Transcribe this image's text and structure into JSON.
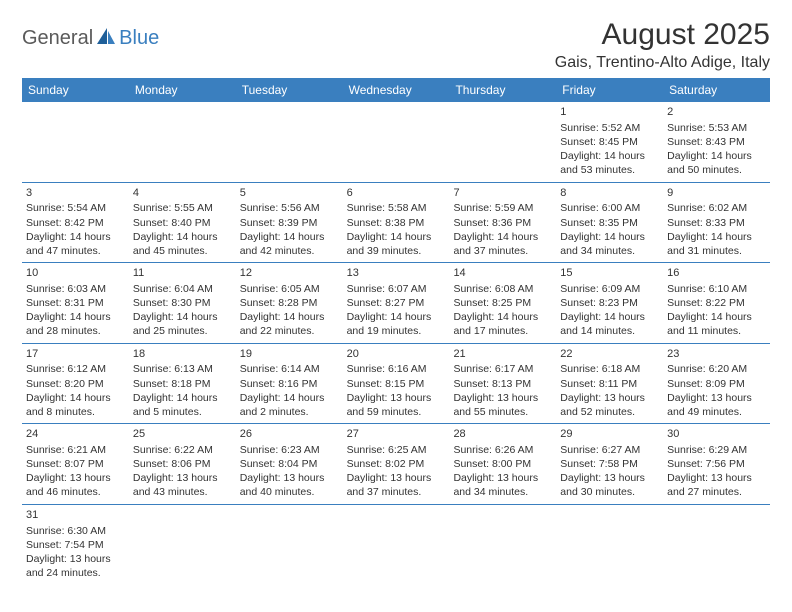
{
  "logo": {
    "left": "General",
    "right": "Blue"
  },
  "title": "August 2025",
  "location": "Gais, Trentino-Alto Adige, Italy",
  "colors": {
    "header_bg": "#3a7fbf",
    "header_text": "#ffffff",
    "row_divider": "#3a7fbf",
    "body_text": "#333333",
    "logo_left": "#5a5a5a",
    "logo_right": "#3a7fbf",
    "background": "#ffffff"
  },
  "typography": {
    "title_fontsize": 30,
    "location_fontsize": 16,
    "day_header_fontsize": 12,
    "cell_fontsize": 10.5,
    "logo_fontsize": 20
  },
  "day_headers": [
    "Sunday",
    "Monday",
    "Tuesday",
    "Wednesday",
    "Thursday",
    "Friday",
    "Saturday"
  ],
  "weeks": [
    [
      null,
      null,
      null,
      null,
      null,
      {
        "day": "1",
        "sunrise": "Sunrise: 5:52 AM",
        "sunset": "Sunset: 8:45 PM",
        "dl1": "Daylight: 14 hours",
        "dl2": "and 53 minutes."
      },
      {
        "day": "2",
        "sunrise": "Sunrise: 5:53 AM",
        "sunset": "Sunset: 8:43 PM",
        "dl1": "Daylight: 14 hours",
        "dl2": "and 50 minutes."
      }
    ],
    [
      {
        "day": "3",
        "sunrise": "Sunrise: 5:54 AM",
        "sunset": "Sunset: 8:42 PM",
        "dl1": "Daylight: 14 hours",
        "dl2": "and 47 minutes."
      },
      {
        "day": "4",
        "sunrise": "Sunrise: 5:55 AM",
        "sunset": "Sunset: 8:40 PM",
        "dl1": "Daylight: 14 hours",
        "dl2": "and 45 minutes."
      },
      {
        "day": "5",
        "sunrise": "Sunrise: 5:56 AM",
        "sunset": "Sunset: 8:39 PM",
        "dl1": "Daylight: 14 hours",
        "dl2": "and 42 minutes."
      },
      {
        "day": "6",
        "sunrise": "Sunrise: 5:58 AM",
        "sunset": "Sunset: 8:38 PM",
        "dl1": "Daylight: 14 hours",
        "dl2": "and 39 minutes."
      },
      {
        "day": "7",
        "sunrise": "Sunrise: 5:59 AM",
        "sunset": "Sunset: 8:36 PM",
        "dl1": "Daylight: 14 hours",
        "dl2": "and 37 minutes."
      },
      {
        "day": "8",
        "sunrise": "Sunrise: 6:00 AM",
        "sunset": "Sunset: 8:35 PM",
        "dl1": "Daylight: 14 hours",
        "dl2": "and 34 minutes."
      },
      {
        "day": "9",
        "sunrise": "Sunrise: 6:02 AM",
        "sunset": "Sunset: 8:33 PM",
        "dl1": "Daylight: 14 hours",
        "dl2": "and 31 minutes."
      }
    ],
    [
      {
        "day": "10",
        "sunrise": "Sunrise: 6:03 AM",
        "sunset": "Sunset: 8:31 PM",
        "dl1": "Daylight: 14 hours",
        "dl2": "and 28 minutes."
      },
      {
        "day": "11",
        "sunrise": "Sunrise: 6:04 AM",
        "sunset": "Sunset: 8:30 PM",
        "dl1": "Daylight: 14 hours",
        "dl2": "and 25 minutes."
      },
      {
        "day": "12",
        "sunrise": "Sunrise: 6:05 AM",
        "sunset": "Sunset: 8:28 PM",
        "dl1": "Daylight: 14 hours",
        "dl2": "and 22 minutes."
      },
      {
        "day": "13",
        "sunrise": "Sunrise: 6:07 AM",
        "sunset": "Sunset: 8:27 PM",
        "dl1": "Daylight: 14 hours",
        "dl2": "and 19 minutes."
      },
      {
        "day": "14",
        "sunrise": "Sunrise: 6:08 AM",
        "sunset": "Sunset: 8:25 PM",
        "dl1": "Daylight: 14 hours",
        "dl2": "and 17 minutes."
      },
      {
        "day": "15",
        "sunrise": "Sunrise: 6:09 AM",
        "sunset": "Sunset: 8:23 PM",
        "dl1": "Daylight: 14 hours",
        "dl2": "and 14 minutes."
      },
      {
        "day": "16",
        "sunrise": "Sunrise: 6:10 AM",
        "sunset": "Sunset: 8:22 PM",
        "dl1": "Daylight: 14 hours",
        "dl2": "and 11 minutes."
      }
    ],
    [
      {
        "day": "17",
        "sunrise": "Sunrise: 6:12 AM",
        "sunset": "Sunset: 8:20 PM",
        "dl1": "Daylight: 14 hours",
        "dl2": "and 8 minutes."
      },
      {
        "day": "18",
        "sunrise": "Sunrise: 6:13 AM",
        "sunset": "Sunset: 8:18 PM",
        "dl1": "Daylight: 14 hours",
        "dl2": "and 5 minutes."
      },
      {
        "day": "19",
        "sunrise": "Sunrise: 6:14 AM",
        "sunset": "Sunset: 8:16 PM",
        "dl1": "Daylight: 14 hours",
        "dl2": "and 2 minutes."
      },
      {
        "day": "20",
        "sunrise": "Sunrise: 6:16 AM",
        "sunset": "Sunset: 8:15 PM",
        "dl1": "Daylight: 13 hours",
        "dl2": "and 59 minutes."
      },
      {
        "day": "21",
        "sunrise": "Sunrise: 6:17 AM",
        "sunset": "Sunset: 8:13 PM",
        "dl1": "Daylight: 13 hours",
        "dl2": "and 55 minutes."
      },
      {
        "day": "22",
        "sunrise": "Sunrise: 6:18 AM",
        "sunset": "Sunset: 8:11 PM",
        "dl1": "Daylight: 13 hours",
        "dl2": "and 52 minutes."
      },
      {
        "day": "23",
        "sunrise": "Sunrise: 6:20 AM",
        "sunset": "Sunset: 8:09 PM",
        "dl1": "Daylight: 13 hours",
        "dl2": "and 49 minutes."
      }
    ],
    [
      {
        "day": "24",
        "sunrise": "Sunrise: 6:21 AM",
        "sunset": "Sunset: 8:07 PM",
        "dl1": "Daylight: 13 hours",
        "dl2": "and 46 minutes."
      },
      {
        "day": "25",
        "sunrise": "Sunrise: 6:22 AM",
        "sunset": "Sunset: 8:06 PM",
        "dl1": "Daylight: 13 hours",
        "dl2": "and 43 minutes."
      },
      {
        "day": "26",
        "sunrise": "Sunrise: 6:23 AM",
        "sunset": "Sunset: 8:04 PM",
        "dl1": "Daylight: 13 hours",
        "dl2": "and 40 minutes."
      },
      {
        "day": "27",
        "sunrise": "Sunrise: 6:25 AM",
        "sunset": "Sunset: 8:02 PM",
        "dl1": "Daylight: 13 hours",
        "dl2": "and 37 minutes."
      },
      {
        "day": "28",
        "sunrise": "Sunrise: 6:26 AM",
        "sunset": "Sunset: 8:00 PM",
        "dl1": "Daylight: 13 hours",
        "dl2": "and 34 minutes."
      },
      {
        "day": "29",
        "sunrise": "Sunrise: 6:27 AM",
        "sunset": "Sunset: 7:58 PM",
        "dl1": "Daylight: 13 hours",
        "dl2": "and 30 minutes."
      },
      {
        "day": "30",
        "sunrise": "Sunrise: 6:29 AM",
        "sunset": "Sunset: 7:56 PM",
        "dl1": "Daylight: 13 hours",
        "dl2": "and 27 minutes."
      }
    ],
    [
      {
        "day": "31",
        "sunrise": "Sunrise: 6:30 AM",
        "sunset": "Sunset: 7:54 PM",
        "dl1": "Daylight: 13 hours",
        "dl2": "and 24 minutes."
      },
      null,
      null,
      null,
      null,
      null,
      null
    ]
  ]
}
